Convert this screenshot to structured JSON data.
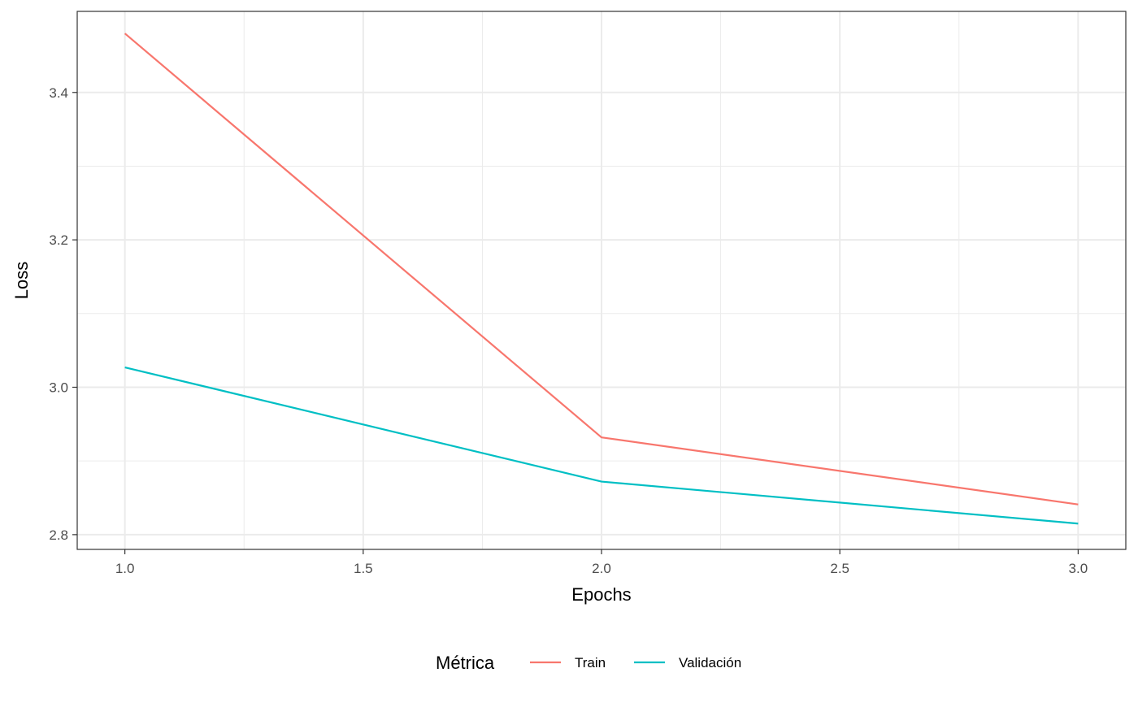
{
  "chart_data": {
    "type": "line",
    "title": "",
    "xlabel": "Epochs",
    "ylabel": "Loss",
    "x": [
      1,
      2,
      3
    ],
    "xlim": [
      0.9,
      3.1
    ],
    "ylim": [
      2.78,
      3.51
    ],
    "xticks": [
      1.0,
      1.5,
      2.0,
      2.5,
      3.0
    ],
    "xtick_labels": [
      "1.0",
      "1.5",
      "2.0",
      "2.5",
      "3.0"
    ],
    "yticks": [
      2.8,
      3.0,
      3.2,
      3.4
    ],
    "ytick_labels": [
      "2.8",
      "3.0",
      "3.2",
      "3.4"
    ],
    "grid": true,
    "legend": {
      "title": "Métrica",
      "position": "bottom"
    },
    "series": [
      {
        "name": "Train",
        "color": "#F8766D",
        "values": [
          3.48,
          2.932,
          2.841
        ]
      },
      {
        "name": "Validación",
        "color": "#00BFC4",
        "values": [
          3.027,
          2.872,
          2.815
        ]
      }
    ]
  }
}
